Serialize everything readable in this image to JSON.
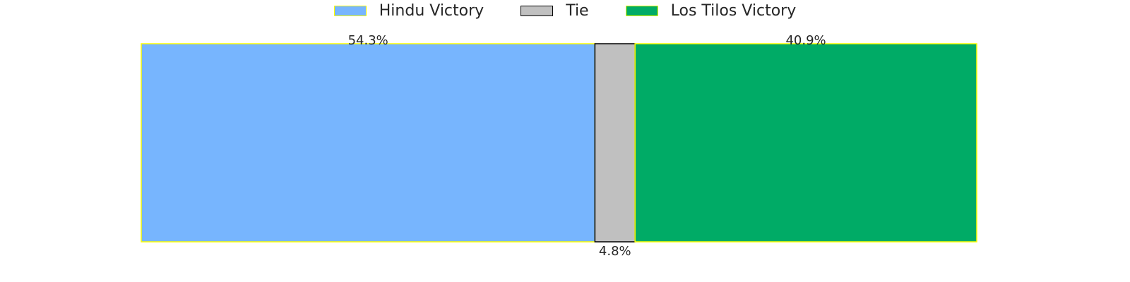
{
  "chart_data": {
    "type": "bar",
    "orientation": "horizontal-stacked-100",
    "title": "",
    "xlabel": "",
    "ylabel": "",
    "grid": false,
    "legend_placement": "top-center",
    "series": [
      {
        "name": "Hindu Victory",
        "value": 54.3,
        "label": "54.3%",
        "color": "#77B5FE",
        "edge_color": "#FFFF00",
        "label_side": "top"
      },
      {
        "name": "Tie",
        "value": 4.8,
        "label": "4.8%",
        "color": "#C0C0C0",
        "edge_color": "#000000",
        "label_side": "bottom"
      },
      {
        "name": "Los Tilos Victory",
        "value": 40.9,
        "label": "40.9%",
        "color": "#00AB66",
        "edge_color": "#FFFF00",
        "label_side": "top"
      }
    ]
  }
}
